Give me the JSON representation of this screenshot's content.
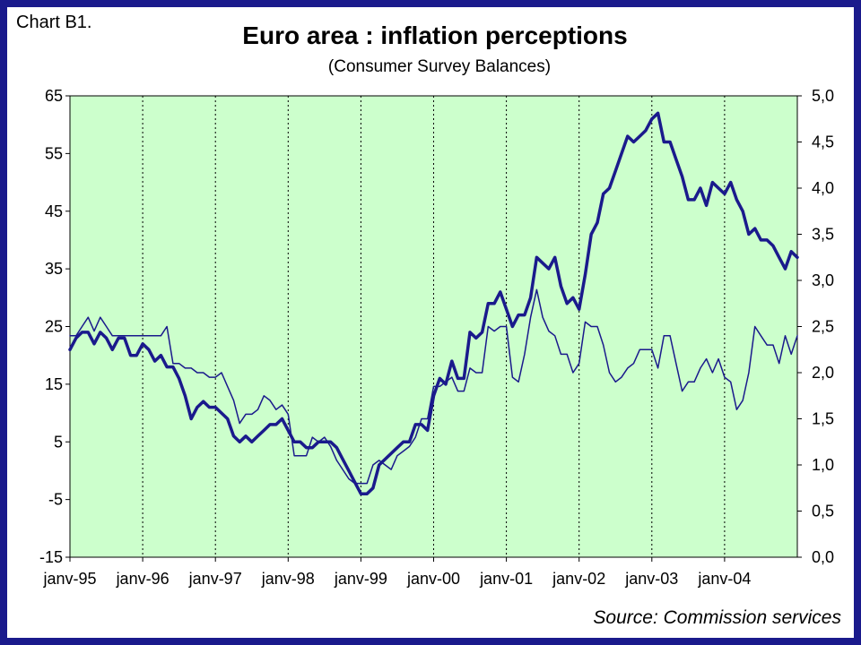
{
  "header": {
    "label": "Chart B1.",
    "title": "Euro area : inflation perceptions",
    "subtitle": "(Consumer Survey Balances)"
  },
  "footer": {
    "source": "Source: Commission services"
  },
  "colors": {
    "plot_bg": "#ccffcc",
    "line": "#1a1a8c",
    "frame": "#1a1a8c"
  },
  "chart_data": {
    "type": "line",
    "title": "Euro area : inflation perceptions",
    "subtitle": "(Consumer Survey Balances)",
    "xlabel": "",
    "ylabel": "",
    "y2label": "",
    "x_tick_labels": [
      "janv-95",
      "janv-96",
      "janv-97",
      "janv-98",
      "janv-99",
      "janv-00",
      "janv-01",
      "janv-02",
      "janv-03",
      "janv-04"
    ],
    "x_range": [
      "1995-01",
      "2004-12"
    ],
    "ylim": [
      -15,
      65
    ],
    "y_ticks": [
      "65",
      "55",
      "45",
      "35",
      "25",
      "15",
      "5",
      "-5",
      "-15"
    ],
    "y2lim": [
      0,
      5
    ],
    "y2_ticks": [
      "5,0",
      "4,5",
      "4,0",
      "3,5",
      "3,0",
      "2,5",
      "2,0",
      "1,5",
      "1,0",
      "0,5",
      "0,0"
    ],
    "grid": "vertical-dotted",
    "series": [
      {
        "axis": "left",
        "style": "thick",
        "points": [
          [
            "1995-01",
            21
          ],
          [
            "1995-02",
            23
          ],
          [
            "1995-03",
            24
          ],
          [
            "1995-04",
            24
          ],
          [
            "1995-05",
            22
          ],
          [
            "1995-06",
            24
          ],
          [
            "1995-07",
            23
          ],
          [
            "1995-08",
            21
          ],
          [
            "1995-09",
            23
          ],
          [
            "1995-10",
            23
          ],
          [
            "1995-11",
            20
          ],
          [
            "1995-12",
            20
          ],
          [
            "1996-01",
            22
          ],
          [
            "1996-02",
            21
          ],
          [
            "1996-03",
            19
          ],
          [
            "1996-04",
            20
          ],
          [
            "1996-05",
            18
          ],
          [
            "1996-06",
            18
          ],
          [
            "1996-07",
            16
          ],
          [
            "1996-08",
            13
          ],
          [
            "1996-09",
            9
          ],
          [
            "1996-10",
            11
          ],
          [
            "1996-11",
            12
          ],
          [
            "1996-12",
            11
          ],
          [
            "1997-01",
            11
          ],
          [
            "1997-02",
            10
          ],
          [
            "1997-03",
            9
          ],
          [
            "1997-04",
            6
          ],
          [
            "1997-05",
            5
          ],
          [
            "1997-06",
            6
          ],
          [
            "1997-07",
            5
          ],
          [
            "1997-08",
            6
          ],
          [
            "1997-09",
            7
          ],
          [
            "1997-10",
            8
          ],
          [
            "1997-11",
            8
          ],
          [
            "1997-12",
            9
          ],
          [
            "1998-01",
            7
          ],
          [
            "1998-02",
            5
          ],
          [
            "1998-03",
            5
          ],
          [
            "1998-04",
            4
          ],
          [
            "1998-05",
            4
          ],
          [
            "1998-06",
            5
          ],
          [
            "1998-07",
            5
          ],
          [
            "1998-08",
            5
          ],
          [
            "1998-09",
            4
          ],
          [
            "1998-10",
            2
          ],
          [
            "1998-11",
            0
          ],
          [
            "1998-12",
            -2
          ],
          [
            "1999-01",
            -4
          ],
          [
            "1999-02",
            -4
          ],
          [
            "1999-03",
            -3
          ],
          [
            "1999-04",
            1
          ],
          [
            "1999-05",
            2
          ],
          [
            "1999-06",
            3
          ],
          [
            "1999-07",
            4
          ],
          [
            "1999-08",
            5
          ],
          [
            "1999-09",
            5
          ],
          [
            "1999-10",
            8
          ],
          [
            "1999-11",
            8
          ],
          [
            "1999-12",
            7
          ],
          [
            "2000-01",
            13
          ],
          [
            "2000-02",
            16
          ],
          [
            "2000-03",
            15
          ],
          [
            "2000-04",
            19
          ],
          [
            "2000-05",
            16
          ],
          [
            "2000-06",
            16
          ],
          [
            "2000-07",
            24
          ],
          [
            "2000-08",
            23
          ],
          [
            "2000-09",
            24
          ],
          [
            "2000-10",
            29
          ],
          [
            "2000-11",
            29
          ],
          [
            "2000-12",
            31
          ],
          [
            "2001-01",
            28
          ],
          [
            "2001-02",
            25
          ],
          [
            "2001-03",
            27
          ],
          [
            "2001-04",
            27
          ],
          [
            "2001-05",
            30
          ],
          [
            "2001-06",
            37
          ],
          [
            "2001-07",
            36
          ],
          [
            "2001-08",
            35
          ],
          [
            "2001-09",
            37
          ],
          [
            "2001-10",
            32
          ],
          [
            "2001-11",
            29
          ],
          [
            "2001-12",
            30
          ],
          [
            "2002-01",
            28
          ],
          [
            "2002-02",
            34
          ],
          [
            "2002-03",
            41
          ],
          [
            "2002-04",
            43
          ],
          [
            "2002-05",
            48
          ],
          [
            "2002-06",
            49
          ],
          [
            "2002-07",
            52
          ],
          [
            "2002-08",
            55
          ],
          [
            "2002-09",
            58
          ],
          [
            "2002-10",
            57
          ],
          [
            "2002-11",
            58
          ],
          [
            "2002-12",
            59
          ],
          [
            "2003-01",
            61
          ],
          [
            "2003-02",
            62
          ],
          [
            "2003-03",
            57
          ],
          [
            "2003-04",
            57
          ],
          [
            "2003-05",
            54
          ],
          [
            "2003-06",
            51
          ],
          [
            "2003-07",
            47
          ],
          [
            "2003-08",
            47
          ],
          [
            "2003-09",
            49
          ],
          [
            "2003-10",
            46
          ],
          [
            "2003-11",
            50
          ],
          [
            "2003-12",
            49
          ],
          [
            "2004-01",
            48
          ],
          [
            "2004-02",
            50
          ],
          [
            "2004-03",
            47
          ],
          [
            "2004-04",
            45
          ],
          [
            "2004-05",
            41
          ],
          [
            "2004-06",
            42
          ],
          [
            "2004-07",
            40
          ],
          [
            "2004-08",
            40
          ],
          [
            "2004-09",
            39
          ],
          [
            "2004-10",
            37
          ],
          [
            "2004-11",
            35
          ],
          [
            "2004-12",
            38
          ],
          [
            "2005-01",
            37
          ]
        ]
      },
      {
        "axis": "right",
        "style": "thin",
        "points": [
          [
            "1995-01",
            2.4
          ],
          [
            "1995-02",
            2.4
          ],
          [
            "1995-03",
            2.5
          ],
          [
            "1995-04",
            2.6
          ],
          [
            "1995-05",
            2.45
          ],
          [
            "1995-06",
            2.6
          ],
          [
            "1995-07",
            2.5
          ],
          [
            "1995-08",
            2.4
          ],
          [
            "1995-09",
            2.4
          ],
          [
            "1995-10",
            2.4
          ],
          [
            "1995-11",
            2.4
          ],
          [
            "1995-12",
            2.4
          ],
          [
            "1996-01",
            2.4
          ],
          [
            "1996-02",
            2.4
          ],
          [
            "1996-03",
            2.4
          ],
          [
            "1996-04",
            2.4
          ],
          [
            "1996-05",
            2.5
          ],
          [
            "1996-06",
            2.1
          ],
          [
            "1996-07",
            2.1
          ],
          [
            "1996-08",
            2.05
          ],
          [
            "1996-09",
            2.05
          ],
          [
            "1996-10",
            2.0
          ],
          [
            "1996-11",
            2.0
          ],
          [
            "1996-12",
            1.95
          ],
          [
            "1997-01",
            1.95
          ],
          [
            "1997-02",
            2.0
          ],
          [
            "1997-03",
            1.85
          ],
          [
            "1997-04",
            1.7
          ],
          [
            "1997-05",
            1.45
          ],
          [
            "1997-06",
            1.55
          ],
          [
            "1997-07",
            1.55
          ],
          [
            "1997-08",
            1.6
          ],
          [
            "1997-09",
            1.75
          ],
          [
            "1997-10",
            1.7
          ],
          [
            "1997-11",
            1.6
          ],
          [
            "1997-12",
            1.65
          ],
          [
            "1998-01",
            1.55
          ],
          [
            "1998-02",
            1.1
          ],
          [
            "1998-03",
            1.1
          ],
          [
            "1998-04",
            1.1
          ],
          [
            "1998-05",
            1.3
          ],
          [
            "1998-06",
            1.25
          ],
          [
            "1998-07",
            1.3
          ],
          [
            "1998-08",
            1.2
          ],
          [
            "1998-09",
            1.05
          ],
          [
            "1998-10",
            0.95
          ],
          [
            "1998-11",
            0.85
          ],
          [
            "1998-12",
            0.8
          ],
          [
            "1999-01",
            0.8
          ],
          [
            "1999-02",
            0.8
          ],
          [
            "1999-03",
            1.0
          ],
          [
            "1999-04",
            1.05
          ],
          [
            "1999-05",
            1.0
          ],
          [
            "1999-06",
            0.95
          ],
          [
            "1999-07",
            1.1
          ],
          [
            "1999-08",
            1.15
          ],
          [
            "1999-09",
            1.2
          ],
          [
            "1999-10",
            1.3
          ],
          [
            "1999-11",
            1.5
          ],
          [
            "1999-12",
            1.5
          ],
          [
            "2000-01",
            1.85
          ],
          [
            "2000-02",
            1.85
          ],
          [
            "2000-03",
            1.9
          ],
          [
            "2000-04",
            1.95
          ],
          [
            "2000-05",
            1.8
          ],
          [
            "2000-06",
            1.8
          ],
          [
            "2000-07",
            2.05
          ],
          [
            "2000-08",
            2.0
          ],
          [
            "2000-09",
            2.0
          ],
          [
            "2000-10",
            2.5
          ],
          [
            "2000-11",
            2.45
          ],
          [
            "2000-12",
            2.5
          ],
          [
            "2001-01",
            2.5
          ],
          [
            "2001-02",
            1.95
          ],
          [
            "2001-03",
            1.9
          ],
          [
            "2001-04",
            2.2
          ],
          [
            "2001-05",
            2.6
          ],
          [
            "2001-06",
            2.9
          ],
          [
            "2001-07",
            2.6
          ],
          [
            "2001-08",
            2.45
          ],
          [
            "2001-09",
            2.4
          ],
          [
            "2001-10",
            2.2
          ],
          [
            "2001-11",
            2.2
          ],
          [
            "2001-12",
            2.0
          ],
          [
            "2002-01",
            2.1
          ],
          [
            "2002-02",
            2.55
          ],
          [
            "2002-03",
            2.5
          ],
          [
            "2002-04",
            2.5
          ],
          [
            "2002-05",
            2.3
          ],
          [
            "2002-06",
            2.0
          ],
          [
            "2002-07",
            1.9
          ],
          [
            "2002-08",
            1.95
          ],
          [
            "2002-09",
            2.05
          ],
          [
            "2002-10",
            2.1
          ],
          [
            "2002-11",
            2.25
          ],
          [
            "2002-12",
            2.25
          ],
          [
            "2003-01",
            2.25
          ],
          [
            "2003-02",
            2.05
          ],
          [
            "2003-03",
            2.4
          ],
          [
            "2003-04",
            2.4
          ],
          [
            "2003-05",
            2.1
          ],
          [
            "2003-06",
            1.8
          ],
          [
            "2003-07",
            1.9
          ],
          [
            "2003-08",
            1.9
          ],
          [
            "2003-09",
            2.05
          ],
          [
            "2003-10",
            2.15
          ],
          [
            "2003-11",
            2.0
          ],
          [
            "2003-12",
            2.15
          ],
          [
            "2004-01",
            1.95
          ],
          [
            "2004-02",
            1.9
          ],
          [
            "2004-03",
            1.6
          ],
          [
            "2004-04",
            1.7
          ],
          [
            "2004-05",
            2.0
          ],
          [
            "2004-06",
            2.5
          ],
          [
            "2004-07",
            2.4
          ],
          [
            "2004-08",
            2.3
          ],
          [
            "2004-09",
            2.3
          ],
          [
            "2004-10",
            2.1
          ],
          [
            "2004-11",
            2.4
          ],
          [
            "2004-12",
            2.2
          ],
          [
            "2005-01",
            2.4
          ]
        ]
      }
    ]
  }
}
